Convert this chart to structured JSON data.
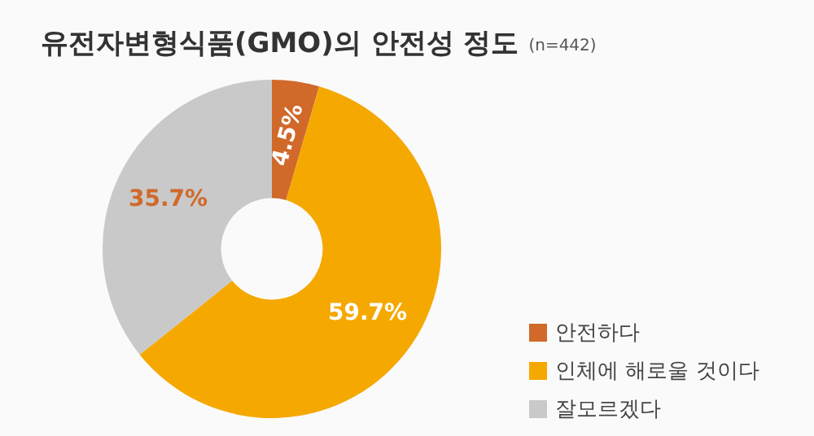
{
  "chart_data": {
    "type": "donut",
    "title": "유전자변형식품(GMO)의 안전성 정도",
    "subtitle": "(n=442)",
    "categories": [
      "안전하다",
      "인체에 해로울 것이다",
      "잘모르겠다"
    ],
    "values": [
      4.5,
      59.7,
      35.7
    ],
    "value_labels": [
      "4.5%",
      "59.7%",
      "35.7%"
    ],
    "colors": [
      "#d0692a",
      "#f5a800",
      "#c9c9c9"
    ],
    "legend": "bottom right"
  }
}
